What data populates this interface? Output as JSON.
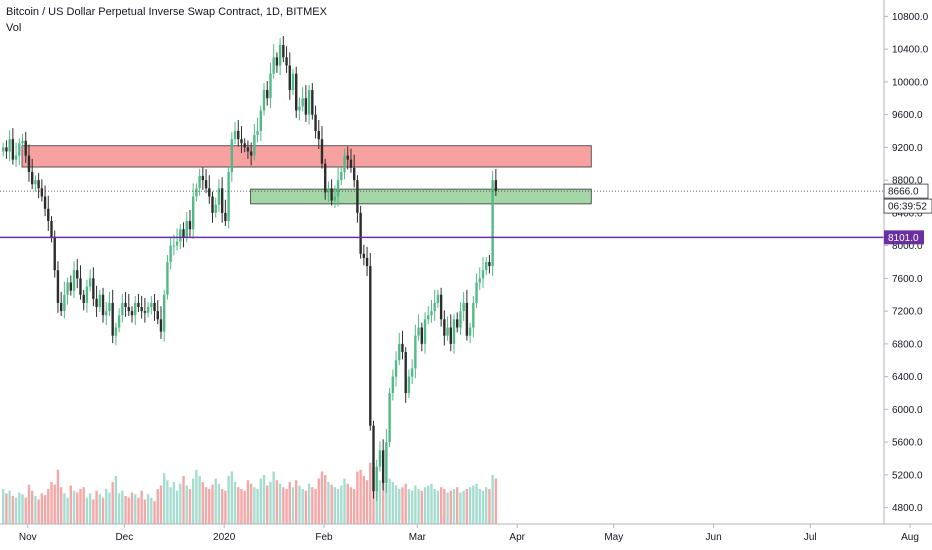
{
  "header": {
    "title": "Bitcoin / US Dollar Perpetual Inverse Swap Contract, 1D, BITMEX",
    "volume_label": "Vol"
  },
  "chart_data": {
    "type": "candlestick",
    "y_ticks": [
      "10800.0",
      "10400.0",
      "10000.0",
      "9600.0",
      "9200.0",
      "8800.0",
      "8400.0",
      "8000.0",
      "7600.0",
      "7200.0",
      "6800.0",
      "6400.0",
      "6000.0",
      "5600.0",
      "5200.0",
      "4800.0"
    ],
    "y_tick_values": [
      10800,
      10400,
      10000,
      9600,
      9200,
      8800,
      8400,
      8000,
      7600,
      7200,
      6800,
      6400,
      6000,
      5600,
      5200,
      4800
    ],
    "ylim": [
      4600,
      11000
    ],
    "x_tick_labels": [
      "Nov",
      "Dec",
      "2020",
      "Feb",
      "Mar",
      "Apr",
      "May",
      "Jun",
      "Jul",
      "Aug"
    ],
    "last_price": {
      "value": 8666,
      "label": "8666.0",
      "countdown": "06:39:52"
    },
    "horizontal_line": {
      "value": 8101,
      "label": "8101.0",
      "color": "#6a2fa0"
    },
    "zones": [
      {
        "name": "resistance",
        "low": 8960,
        "high": 9220,
        "color": "#f7a1a1",
        "from_day": 0,
        "to_day": 183
      },
      {
        "name": "support",
        "low": 8510,
        "high": 8690,
        "color": "#a5d6a7",
        "from_day": 71,
        "to_day": 183
      }
    ],
    "colors": {
      "up": "#53b987",
      "down": "#2d2d2d",
      "vol_up": "#a6dcd0",
      "vol_down": "#f4a7a7"
    },
    "closes": [
      9200,
      9150,
      9300,
      9050,
      9100,
      9250,
      9280,
      9100,
      8900,
      8750,
      8800,
      8700,
      8600,
      8450,
      8300,
      8100,
      7700,
      7300,
      7200,
      7400,
      7550,
      7450,
      7700,
      7600,
      7400,
      7300,
      7500,
      7600,
      7350,
      7250,
      7400,
      7150,
      7200,
      7300,
      6900,
      7000,
      7150,
      7300,
      7250,
      7200,
      7150,
      7300,
      7250,
      7200,
      7180,
      7250,
      7300,
      7200,
      7100,
      6950,
      7400,
      7800,
      8000,
      8000,
      8050,
      8200,
      8100,
      8300,
      8200,
      8600,
      8700,
      8850,
      8800,
      8700,
      8600,
      8400,
      8500,
      8700,
      8400,
      8300,
      8900,
      9300,
      9400,
      9300,
      9250,
      9200,
      9150,
      9100,
      9350,
      9400,
      9650,
      9900,
      9800,
      10100,
      10300,
      10200,
      10450,
      10300,
      10200,
      9900,
      10100,
      9650,
      9700,
      9800,
      9600,
      9900,
      9600,
      9400,
      9300,
      9000,
      8650,
      8700,
      8550,
      8600,
      8800,
      8900,
      9100,
      9050,
      8950,
      8800,
      8400,
      7900,
      7850,
      7750,
      5800,
      5000,
      5300,
      5500,
      5100,
      5600,
      6200,
      6400,
      6600,
      6800,
      6700,
      6200,
      6400,
      6500,
      6900,
      7000,
      6800,
      7100,
      7150,
      7200,
      7300,
      7400,
      7100,
      6900,
      7000,
      6800,
      7100,
      7000,
      7200,
      7300,
      6900,
      7000,
      7300,
      7550,
      7600,
      7700,
      7800,
      7750,
      8800,
      8666
    ],
    "volumes": [
      40,
      35,
      38,
      32,
      30,
      36,
      34,
      30,
      45,
      38,
      32,
      28,
      35,
      33,
      40,
      48,
      45,
      62,
      42,
      35,
      30,
      44,
      38,
      36,
      40,
      42,
      30,
      35,
      28,
      38,
      34,
      30,
      40,
      36,
      48,
      55,
      35,
      38,
      32,
      30,
      36,
      34,
      30,
      38,
      28,
      34,
      30,
      26,
      40,
      44,
      58,
      50,
      42,
      48,
      38,
      46,
      55,
      44,
      40,
      52,
      62,
      55,
      48,
      42,
      40,
      45,
      52,
      46,
      40,
      38,
      55,
      60,
      48,
      42,
      40,
      38,
      50,
      46,
      42,
      40,
      52,
      56,
      44,
      48,
      60,
      50,
      46,
      42,
      40,
      48,
      42,
      50,
      44,
      40,
      38,
      46,
      42,
      40,
      52,
      60,
      56,
      48,
      45,
      42,
      40,
      44,
      52,
      46,
      42,
      40,
      60,
      62,
      55,
      50,
      70,
      65,
      55,
      50,
      48,
      46,
      52,
      48,
      44,
      40,
      42,
      46,
      40,
      38,
      44,
      40,
      38,
      42,
      44,
      46,
      40,
      38,
      42,
      40,
      36,
      38,
      40,
      42,
      36,
      38,
      40,
      42,
      44,
      46,
      40,
      38,
      42,
      40,
      56,
      52
    ],
    "day_max": 275
  }
}
